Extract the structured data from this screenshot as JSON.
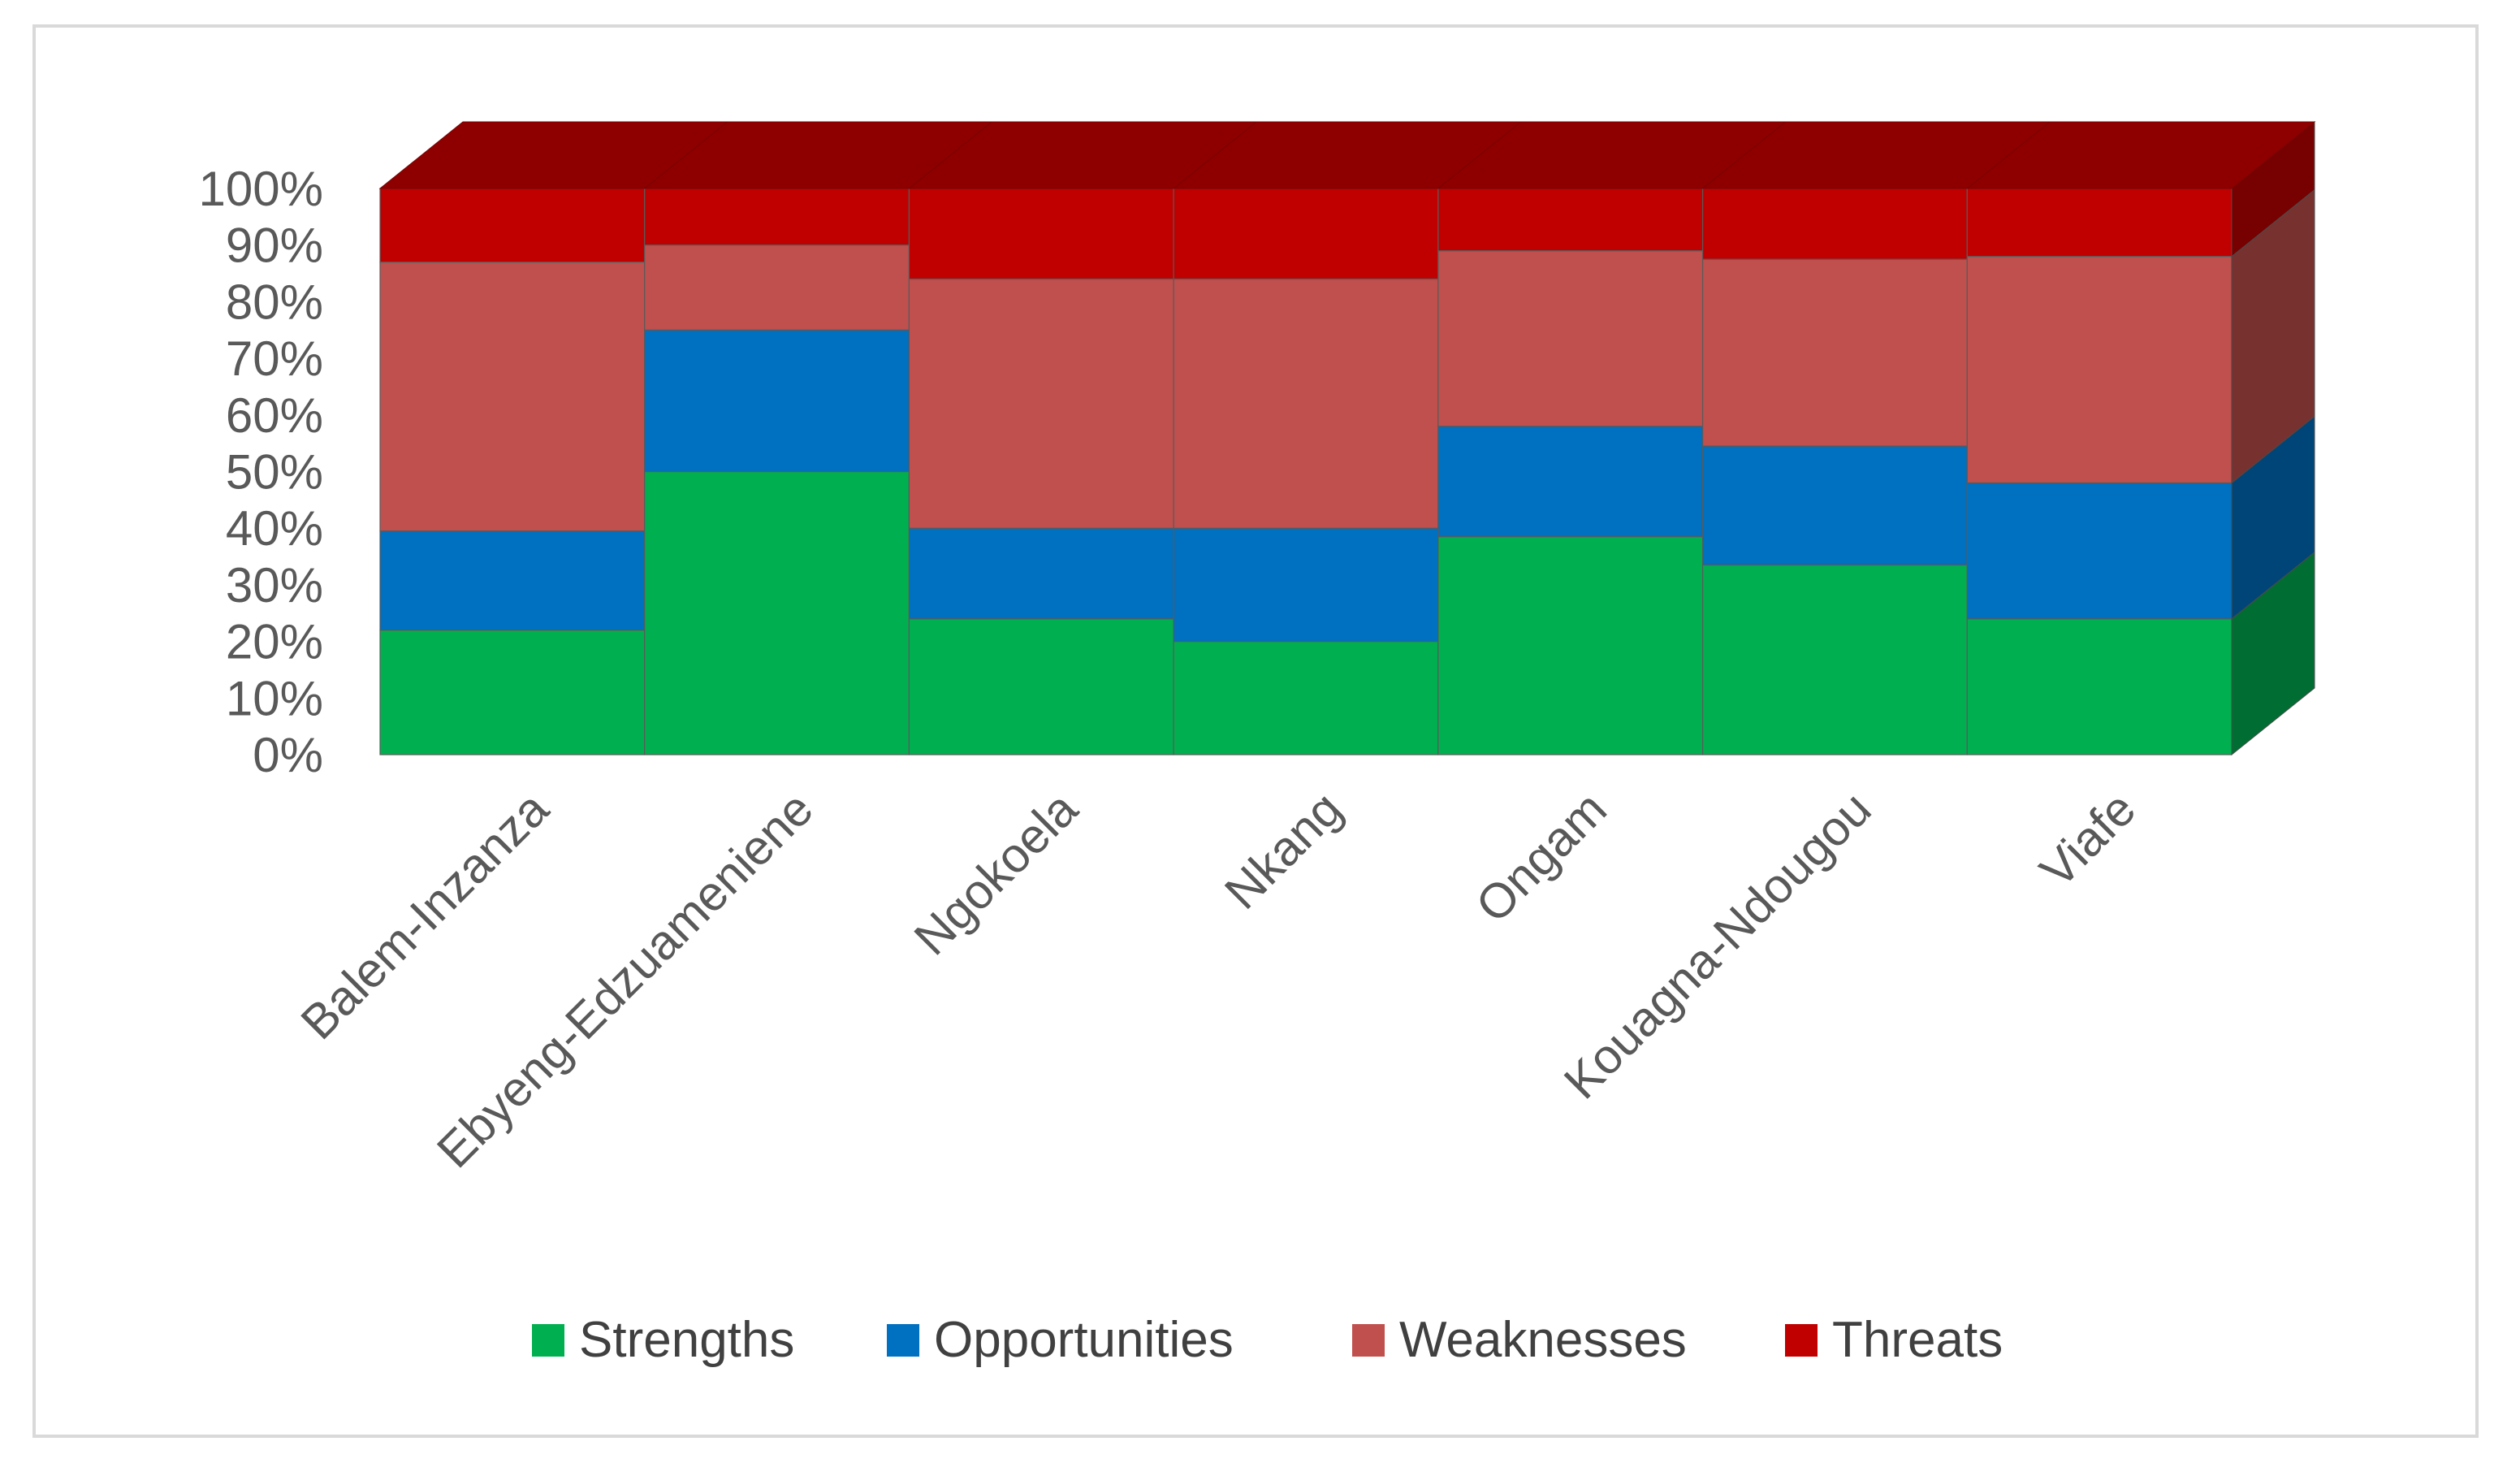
{
  "chart_data": {
    "type": "bar",
    "stacked": true,
    "percent": true,
    "three_d": true,
    "title": "",
    "xlabel": "",
    "ylabel": "",
    "ylim": [
      0,
      100
    ],
    "y_ticks": [
      "0%",
      "10%",
      "20%",
      "30%",
      "40%",
      "50%",
      "60%",
      "70%",
      "80%",
      "90%",
      "100%"
    ],
    "categories": [
      "Balem-Inzanza",
      "Ebyeng-Edzuameniene",
      "Ngokoela",
      "Nkang",
      "Ongam",
      "Kouagna-Ndougou",
      "Viafe"
    ],
    "series": [
      {
        "name": "Strengths",
        "color": "#00b050",
        "values": [
          22,
          50,
          24,
          20,
          38.5,
          33.5,
          24
        ]
      },
      {
        "name": "Opportunities",
        "color": "#0070c0",
        "values": [
          17.5,
          25,
          16,
          20,
          19.5,
          21,
          24
        ]
      },
      {
        "name": "Weaknesses",
        "color": "#c0504d",
        "values": [
          47.5,
          15,
          44,
          44,
          31,
          33,
          40
        ]
      },
      {
        "name": "Threats",
        "color": "#c00000",
        "values": [
          13,
          10,
          16,
          16,
          11,
          12.5,
          12
        ]
      }
    ],
    "legend_position": "bottom",
    "grid": false
  }
}
